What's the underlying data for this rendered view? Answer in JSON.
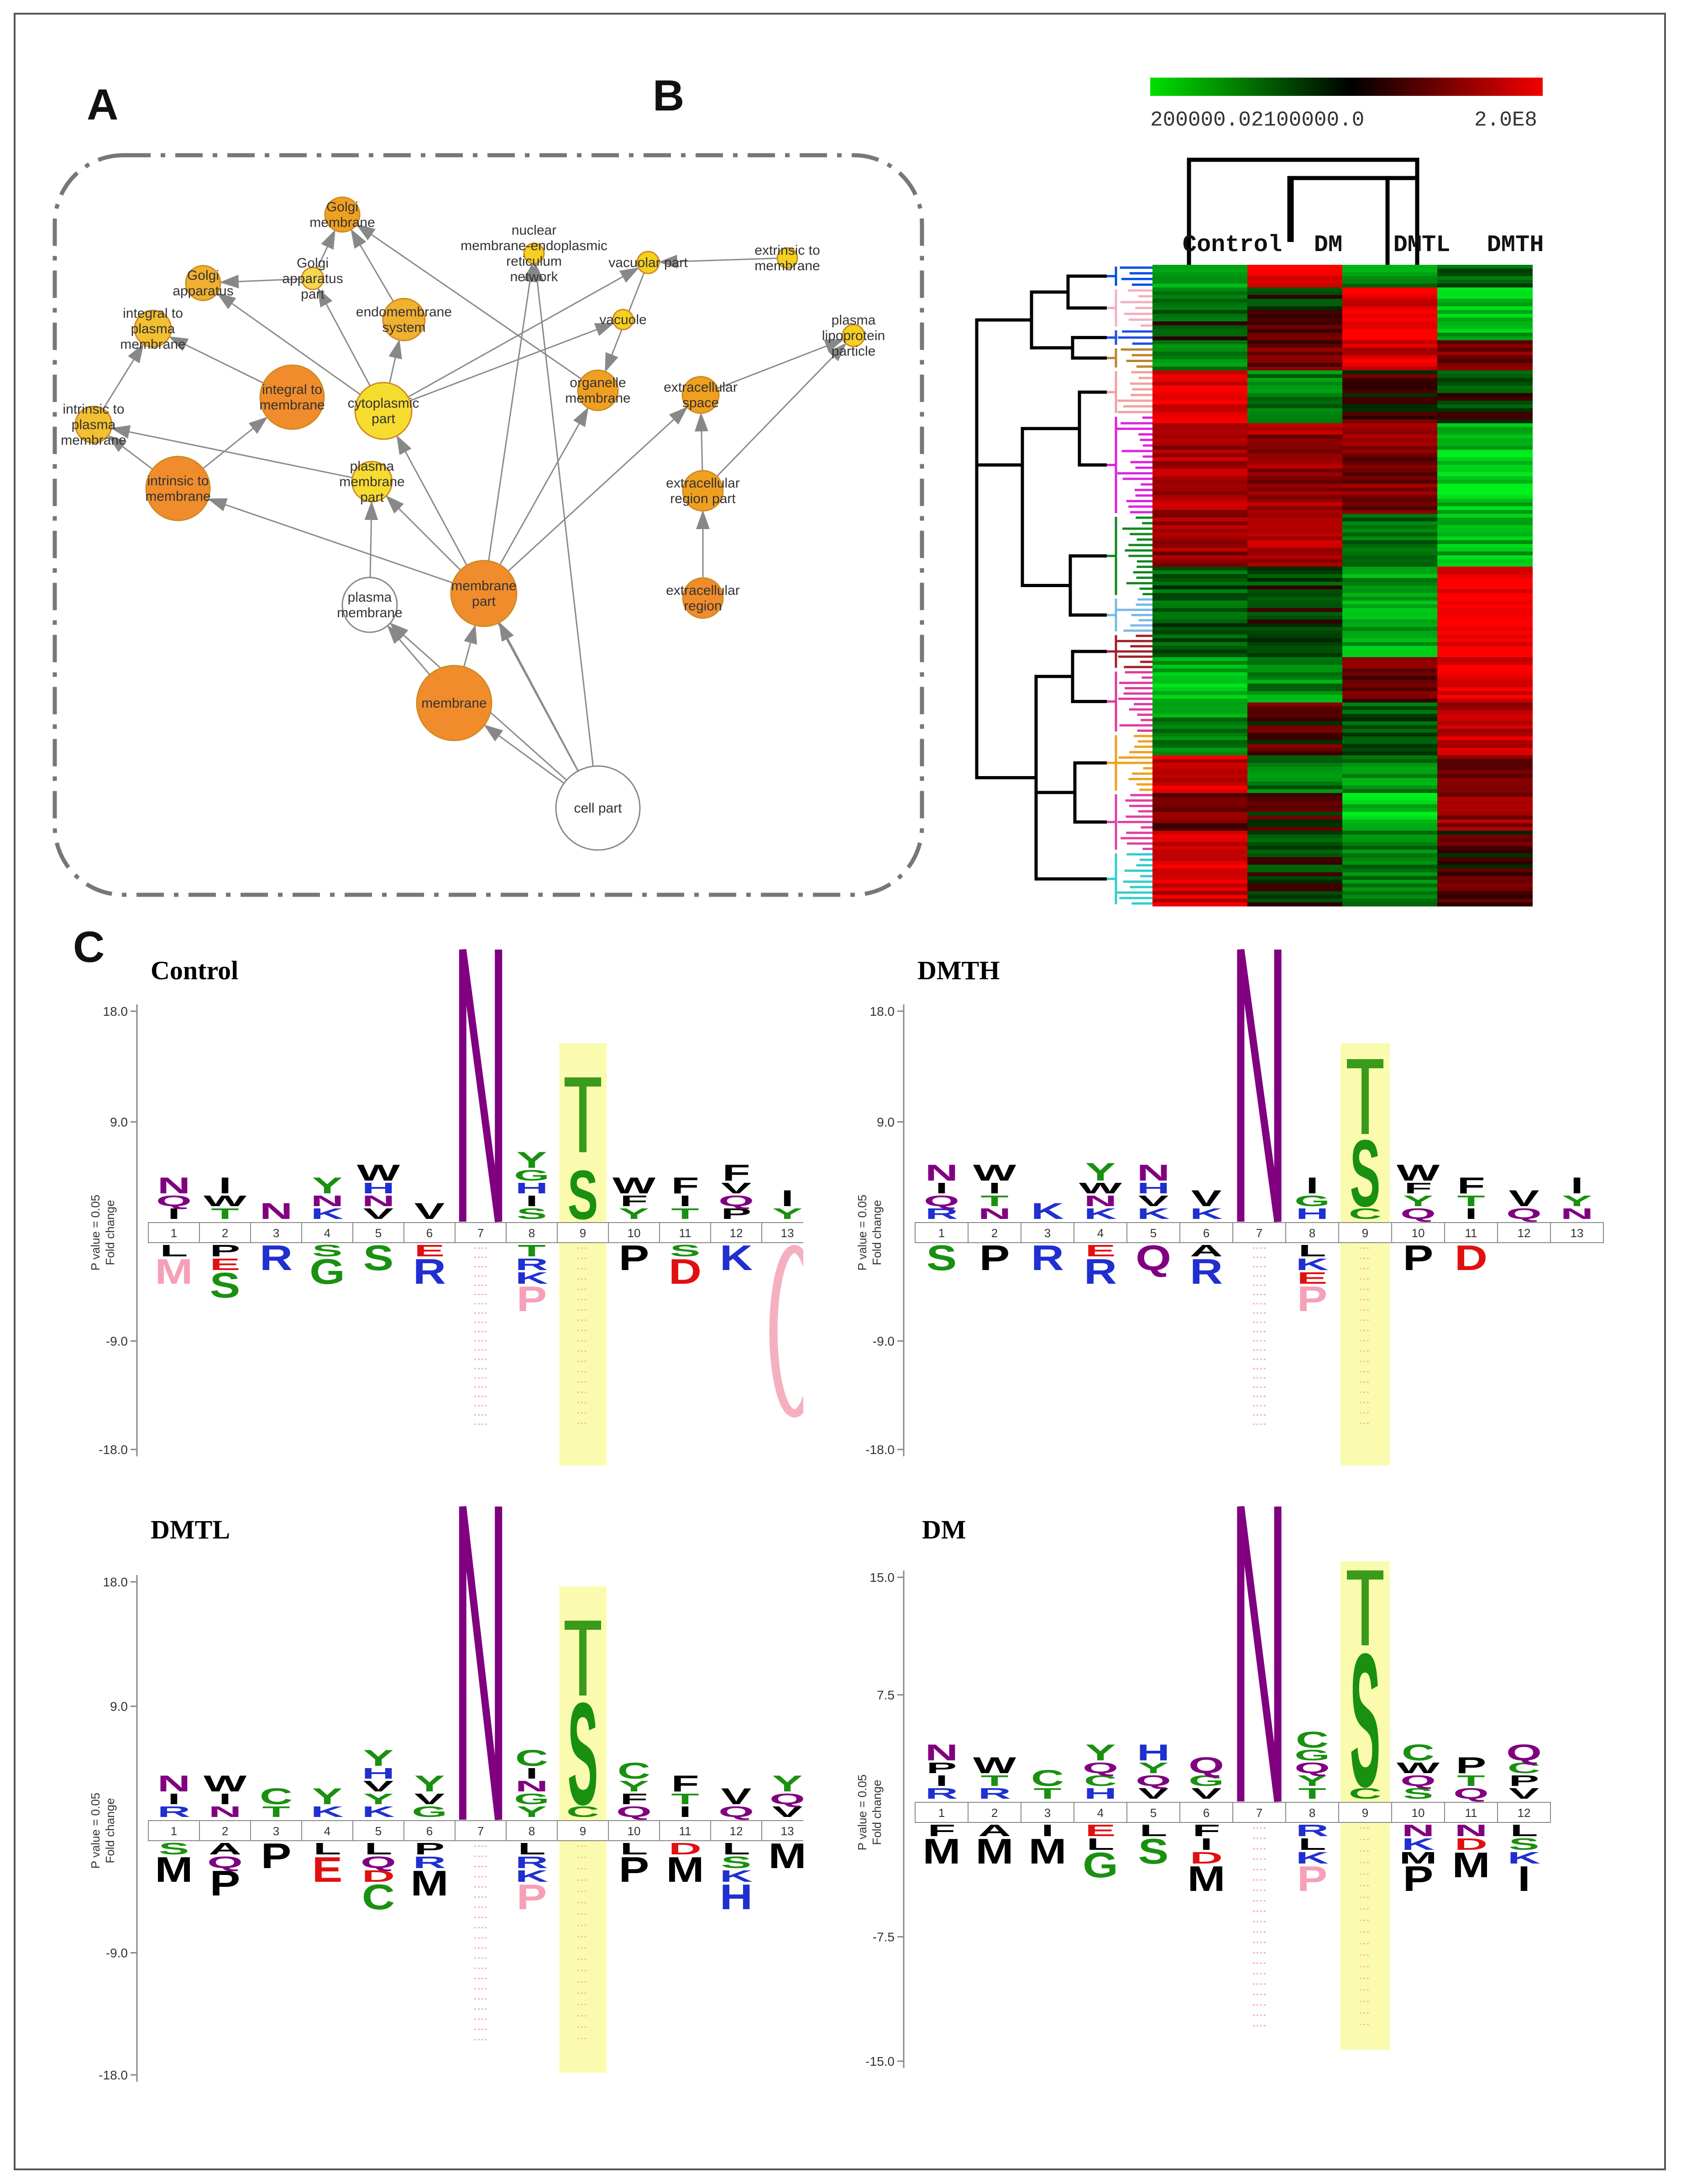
{
  "panels": {
    "a": "A",
    "b": "B",
    "c": "C"
  },
  "network": {
    "nodes": [
      {
        "id": "golgi_membrane",
        "label": [
          "Golgi",
          "membrane"
        ],
        "color": "#f0a020"
      },
      {
        "id": "nuclear",
        "label": [
          "nuclear",
          "membrane-endoplasmic",
          "reticulum",
          "network"
        ],
        "color": "#f5d020"
      },
      {
        "id": "golgi_apparatus",
        "label": [
          "Golgi",
          "apparatus"
        ],
        "color": "#f0b030"
      },
      {
        "id": "golgi_apparatus_part",
        "label": [
          "Golgi",
          "apparatus",
          "part"
        ],
        "color": "#f5d850"
      },
      {
        "id": "integral_plasma",
        "label": [
          "integral to",
          "plasma",
          "membrane"
        ],
        "color": "#f2c030"
      },
      {
        "id": "endomembrane",
        "label": [
          "endomembrane",
          "system"
        ],
        "color": "#f0b030"
      },
      {
        "id": "vacuolar_part",
        "label": [
          "vacuolar part"
        ],
        "color": "#f5d020"
      },
      {
        "id": "vacuole",
        "label": [
          "vacuole"
        ],
        "color": "#f5d020"
      },
      {
        "id": "extrinsic_membrane",
        "label": [
          "extrinsic to",
          "membrane"
        ],
        "color": "#f5d020"
      },
      {
        "id": "plasma_lipoprotein",
        "label": [
          "plasma",
          "lipoprotein",
          "particle"
        ],
        "color": "#f5d020"
      },
      {
        "id": "integral_membrane",
        "label": [
          "integral to",
          "membrane"
        ],
        "color": "#f08c2c"
      },
      {
        "id": "cytoplasmic_part",
        "label": [
          "cytoplasmic",
          "part"
        ],
        "color": "#f7dc30"
      },
      {
        "id": "organelle_membrane",
        "label": [
          "organelle",
          "membrane"
        ],
        "color": "#f0a020"
      },
      {
        "id": "extracellular_space",
        "label": [
          "extracellular",
          "space"
        ],
        "color": "#f0a020"
      },
      {
        "id": "intrinsic_plasma",
        "label": [
          "intrinsic to",
          "plasma",
          "membrane"
        ],
        "color": "#f2c030"
      },
      {
        "id": "intrinsic_membrane",
        "label": [
          "intrinsic to",
          "membrane"
        ],
        "color": "#f08c2c"
      },
      {
        "id": "plasma_membrane_part",
        "label": [
          "plasma",
          "membrane",
          "part"
        ],
        "color": "#f7dc30"
      },
      {
        "id": "extracellular_region_part",
        "label": [
          "extracellular",
          "region part"
        ],
        "color": "#f0a020"
      },
      {
        "id": "plasma_membrane",
        "label": [
          "plasma",
          "membrane"
        ],
        "color": "#ffffff"
      },
      {
        "id": "membrane_part",
        "label": [
          "membrane",
          "part"
        ],
        "color": "#f08c2c"
      },
      {
        "id": "extracellular_region",
        "label": [
          "extracellular",
          "region"
        ],
        "color": "#f08c2c"
      },
      {
        "id": "membrane",
        "label": [
          "membrane"
        ],
        "color": "#f08c2c"
      },
      {
        "id": "cell_part",
        "label": [
          "cell part"
        ],
        "color": "#ffffff"
      }
    ],
    "edges": [
      [
        "cell_part",
        "membrane"
      ],
      [
        "cell_part",
        "membrane_part"
      ],
      [
        "cell_part",
        "plasma_membrane"
      ],
      [
        "cell_part",
        "cytoplasmic_part"
      ],
      [
        "cell_part",
        "nuclear"
      ],
      [
        "membrane",
        "membrane_part"
      ],
      [
        "membrane",
        "plasma_membrane"
      ],
      [
        "membrane_part",
        "intrinsic_membrane"
      ],
      [
        "membrane_part",
        "plasma_membrane_part"
      ],
      [
        "membrane_part",
        "organelle_membrane"
      ],
      [
        "membrane_part",
        "nuclear"
      ],
      [
        "membrane_part",
        "extracellular_space"
      ],
      [
        "plasma_membrane",
        "plasma_membrane_part"
      ],
      [
        "plasma_membrane_part",
        "intrinsic_plasma"
      ],
      [
        "intrinsic_membrane",
        "integral_membrane"
      ],
      [
        "intrinsic_membrane",
        "intrinsic_plasma"
      ],
      [
        "integral_membrane",
        "integral_plasma"
      ],
      [
        "intrinsic_plasma",
        "integral_plasma"
      ],
      [
        "cytoplasmic_part",
        "golgi_apparatus_part"
      ],
      [
        "cytoplasmic_part",
        "endomembrane"
      ],
      [
        "cytoplasmic_part",
        "vacuolar_part"
      ],
      [
        "cytoplasmic_part",
        "vacuole"
      ],
      [
        "cytoplasmic_part",
        "golgi_apparatus"
      ],
      [
        "golgi_apparatus_part",
        "golgi_membrane"
      ],
      [
        "golgi_apparatus_part",
        "golgi_apparatus"
      ],
      [
        "endomembrane",
        "golgi_membrane"
      ],
      [
        "organelle_membrane",
        "golgi_membrane"
      ],
      [
        "vacuolar_part",
        "organelle_membrane"
      ],
      [
        "extracellular_region_part",
        "extracellular_space"
      ],
      [
        "extracellular_region",
        "extracellular_region_part"
      ],
      [
        "extracellular_region_part",
        "plasma_lipoprotein"
      ],
      [
        "extracellular_space",
        "plasma_lipoprotein"
      ],
      [
        "extrinsic_membrane",
        "vacuolar_part"
      ]
    ]
  },
  "heatmap": {
    "colorbar_labels": [
      "200000.02100000.0",
      "2.0E8"
    ],
    "colorbar_colors": [
      "#00e000",
      "#000000",
      "#ff0000"
    ],
    "columns": [
      "Control",
      "DM",
      "DMTL",
      "DMTH"
    ],
    "cluster_colors": [
      "#0050e0",
      "#f3b0c0",
      "#1e4de0",
      "#b8862b",
      "#f3a0a0",
      "#e020e0",
      "#11881e",
      "#7ab8e8",
      "#a0202a",
      "#e03a9a",
      "#f0a020",
      "#e040a0",
      "#33cccc"
    ],
    "col_dendrogram": "((Control,(DM,(DMTL,DMTH))))"
  },
  "logos": {
    "ylabel_primary": "Fold change",
    "ylabel_secondary": "P value = 0.05",
    "residue_colors": {
      "K": "#1f2fd0",
      "R": "#1f2fd0",
      "H": "#1f2fd0",
      "D": "#e01010",
      "E": "#e01010",
      "N": "#800080",
      "Q": "#800080",
      "S": "#1a9010",
      "T": "#1a9010",
      "G": "#1a9010",
      "C": "#1a9010",
      "Y": "#1a9010",
      "A": "#000000",
      "V": "#000000",
      "L": "#000000",
      "I": "#000000",
      "P": "#000000",
      "F": "#000000",
      "M": "#000000",
      "W": "#000000"
    },
    "items": [
      {
        "title": "Control",
        "ticks": [
          "18.0",
          "9.0",
          "-9.0",
          "-18.0"
        ],
        "positions": [
          "1",
          "2",
          "3",
          "4",
          "5",
          "6",
          "7",
          "8",
          "9",
          "10",
          "11",
          "12",
          "13"
        ],
        "up": [
          [
            "N",
            "Q",
            "I"
          ],
          [
            "I",
            "W",
            "T"
          ],
          [
            "N"
          ],
          [
            "Y",
            "N",
            "K"
          ],
          [
            "W",
            "H",
            "N",
            "V"
          ],
          [
            "V"
          ],
          [],
          [
            "Y",
            "G",
            "H",
            "I",
            "S"
          ],
          [
            "T",
            "S"
          ],
          [
            "W",
            "F",
            "Y"
          ],
          [
            "F",
            "I",
            "T"
          ],
          [
            "F",
            "V",
            "Q",
            "P"
          ],
          [
            "I",
            "Y"
          ]
        ],
        "down": [
          [
            "L",
            "M"
          ],
          [
            "P",
            "E",
            "S"
          ],
          [
            "R"
          ],
          [
            "S",
            "G"
          ],
          [
            "S"
          ],
          [
            "E",
            "R"
          ],
          [],
          [
            "T",
            "R",
            "K",
            "P"
          ],
          [],
          [
            "P"
          ],
          [
            "S",
            "D"
          ],
          [
            "K"
          ],
          [
            "C"
          ]
        ]
      },
      {
        "title": "DMTH",
        "ticks": [
          "18.0",
          "9.0",
          "-9.0",
          "-18.0"
        ],
        "positions": [
          "1",
          "2",
          "3",
          "4",
          "5",
          "6",
          "7",
          "8",
          "9",
          "10",
          "11",
          "12",
          "13"
        ],
        "up": [
          [
            "N",
            "I",
            "Q",
            "R"
          ],
          [
            "W",
            "I",
            "T",
            "N"
          ],
          [
            "K"
          ],
          [
            "Y",
            "W",
            "N",
            "K"
          ],
          [
            "N",
            "H",
            "V",
            "K"
          ],
          [
            "V",
            "K"
          ],
          [],
          [
            "I",
            "G",
            "H"
          ],
          [
            "T",
            "S",
            "C"
          ],
          [
            "W",
            "F",
            "Y",
            "Q"
          ],
          [
            "F",
            "T",
            "I"
          ],
          [
            "V",
            "Q"
          ],
          [
            "I",
            "Y",
            "N"
          ]
        ],
        "down": [
          [
            "S"
          ],
          [
            "P"
          ],
          [
            "R"
          ],
          [
            "E",
            "R"
          ],
          [
            "Q"
          ],
          [
            "A",
            "R"
          ],
          [],
          [
            "L",
            "K",
            "E",
            "P"
          ],
          [],
          [
            "P"
          ],
          [
            "D"
          ],
          [],
          []
        ]
      },
      {
        "title": "DMTL",
        "ticks": [
          "18.0",
          "9.0",
          "-9.0",
          "-18.0"
        ],
        "positions": [
          "1",
          "2",
          "3",
          "4",
          "5",
          "6",
          "7",
          "8",
          "9",
          "10",
          "11",
          "12",
          "13"
        ],
        "up": [
          [
            "N",
            "I",
            "R"
          ],
          [
            "W",
            "I",
            "N"
          ],
          [
            "C",
            "T"
          ],
          [
            "Y",
            "K"
          ],
          [
            "Y",
            "H",
            "V",
            "Y",
            "K"
          ],
          [
            "Y",
            "V",
            "G"
          ],
          [],
          [
            "C",
            "I",
            "N",
            "G",
            "Y"
          ],
          [
            "T",
            "S",
            "C"
          ],
          [
            "C",
            "Y",
            "F",
            "Q"
          ],
          [
            "F",
            "T",
            "I"
          ],
          [
            "V",
            "Q"
          ],
          [
            "Y",
            "Q",
            "V"
          ]
        ],
        "down": [
          [
            "S",
            "M"
          ],
          [
            "A",
            "Q",
            "P"
          ],
          [
            "P"
          ],
          [
            "L",
            "E"
          ],
          [
            "L",
            "Q",
            "D",
            "C"
          ],
          [
            "P",
            "R",
            "M"
          ],
          [],
          [
            "L",
            "R",
            "K",
            "P"
          ],
          [],
          [
            "L",
            "P"
          ],
          [
            "D",
            "M"
          ],
          [
            "L",
            "S",
            "K",
            "H"
          ],
          [
            "M"
          ]
        ]
      },
      {
        "title": "DM",
        "ticks": [
          "15.0",
          "7.5",
          "-7.5",
          "-15.0"
        ],
        "positions": [
          "1",
          "2",
          "3",
          "4",
          "5",
          "6",
          "7",
          "8",
          "9",
          "10",
          "11",
          "12"
        ],
        "up": [
          [
            "N",
            "P",
            "I",
            "R"
          ],
          [
            "W",
            "T",
            "R"
          ],
          [
            "C",
            "T"
          ],
          [
            "Y",
            "Q",
            "C",
            "H"
          ],
          [
            "H",
            "Y",
            "Q",
            "V"
          ],
          [
            "Q",
            "G",
            "V"
          ],
          [],
          [
            "C",
            "G",
            "Q",
            "Y",
            "T"
          ],
          [
            "T",
            "S",
            "C"
          ],
          [
            "C",
            "W",
            "Q",
            "S"
          ],
          [
            "P",
            "T",
            "Q"
          ],
          [
            "Q",
            "C",
            "P",
            "V"
          ]
        ],
        "down": [
          [
            "F",
            "M"
          ],
          [
            "A",
            "M"
          ],
          [
            "I",
            "M"
          ],
          [
            "E",
            "L",
            "G"
          ],
          [
            "L",
            "S"
          ],
          [
            "F",
            "I",
            "D",
            "M"
          ],
          [],
          [
            "R",
            "L",
            "K",
            "P"
          ],
          [],
          [
            "N",
            "K",
            "M",
            "P"
          ],
          [
            "N",
            "D",
            "M"
          ],
          [
            "L",
            "S",
            "K",
            "I"
          ]
        ]
      }
    ]
  }
}
